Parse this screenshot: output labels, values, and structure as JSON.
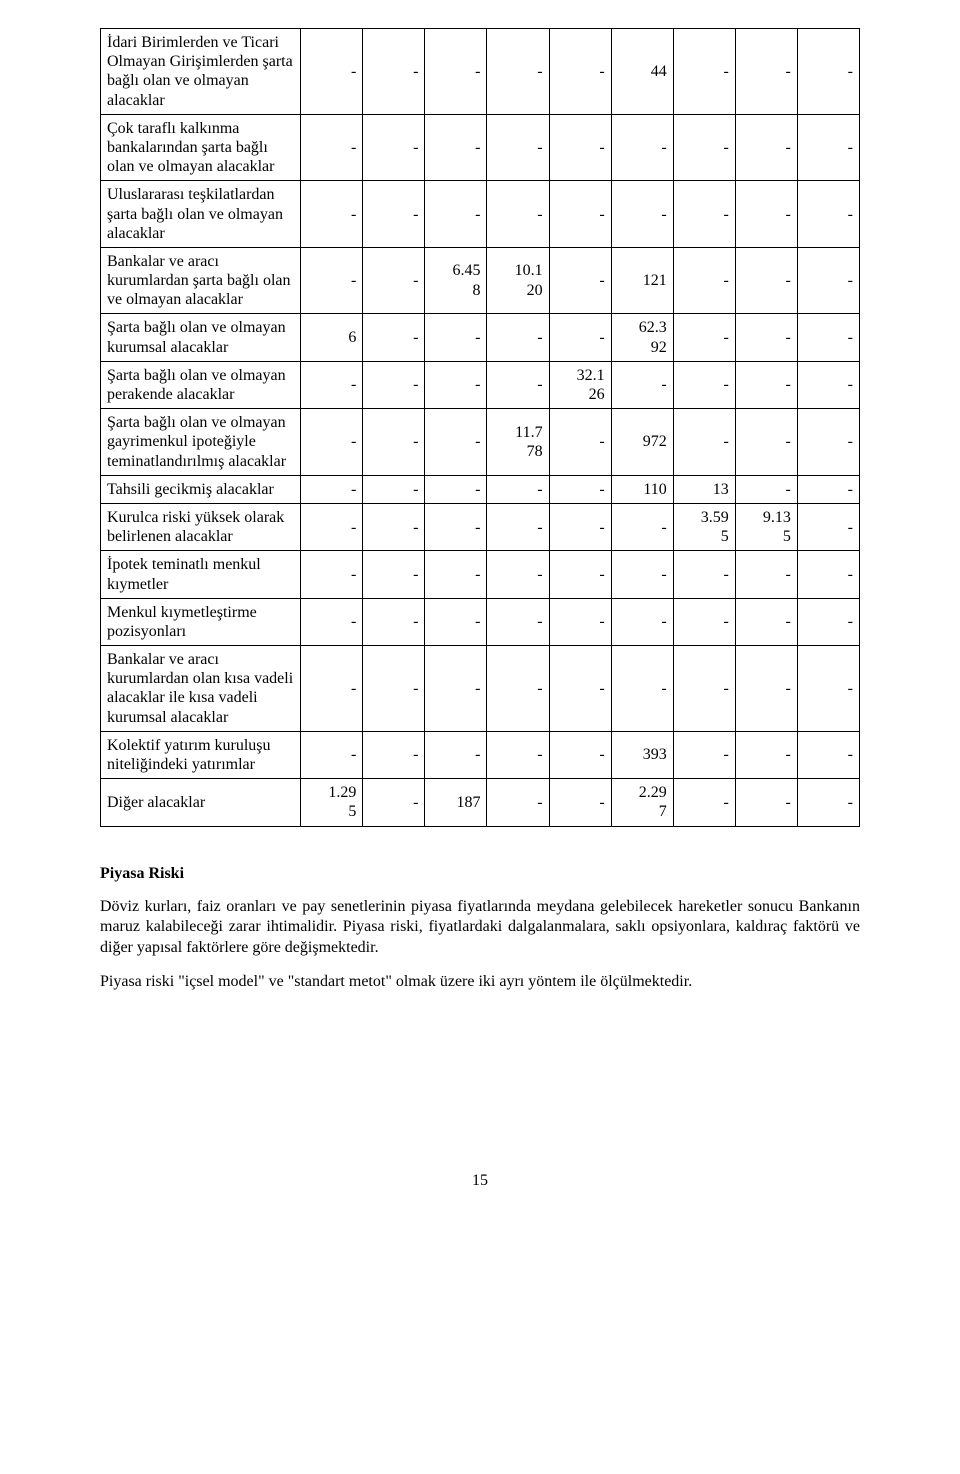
{
  "table": {
    "columns_count": 10,
    "row_labels": [
      "İdari Birimlerden ve Ticari Olmayan Girişimlerden şarta bağlı olan ve olmayan alacaklar",
      "Çok taraflı kalkınma bankalarından şarta bağlı olan ve olmayan alacaklar",
      "Uluslararası teşkilatlardan şarta bağlı olan ve olmayan alacaklar",
      "Bankalar ve aracı kurumlardan şarta bağlı olan ve olmayan alacaklar",
      "Şarta bağlı olan ve olmayan kurumsal alacaklar",
      "Şarta bağlı olan ve olmayan perakende alacaklar",
      "Şarta bağlı olan ve olmayan gayrimenkul ipoteğiyle teminatlandırılmış alacaklar",
      "Tahsili gecikmiş alacaklar",
      "Kurulca riski yüksek olarak belirlenen alacaklar",
      "İpotek teminatlı menkul kıymetler",
      "Menkul kıymetleştirme pozisyonları",
      "Bankalar ve aracı kurumlardan olan kısa vadeli alacaklar ile kısa vadeli kurumsal alacaklar",
      "Kolektif yatırım kuruluşu niteliğindeki yatırımlar",
      "Diğer alacaklar"
    ],
    "rows": [
      [
        "-",
        "-",
        "-",
        "-",
        "-",
        "44",
        "-",
        "-",
        "-"
      ],
      [
        "-",
        "-",
        "-",
        "-",
        "-",
        "-",
        "-",
        "-",
        "-"
      ],
      [
        "-",
        "-",
        "-",
        "-",
        "-",
        "-",
        "-",
        "-",
        "-"
      ],
      [
        "-",
        "-",
        "6.45\n8",
        "10.1\n20",
        "-",
        "121",
        "-",
        "-",
        "-"
      ],
      [
        "6",
        "-",
        "-",
        "-",
        "-",
        "62.3\n92",
        "-",
        "-",
        "-"
      ],
      [
        "-",
        "-",
        "-",
        "-",
        "32.1\n26",
        "-",
        "-",
        "-",
        "-"
      ],
      [
        "-",
        "-",
        "-",
        "11.7\n78",
        "-",
        "972",
        "-",
        "-",
        "-"
      ],
      [
        "-",
        "-",
        "-",
        "-",
        "-",
        "110",
        "13",
        "-",
        "-"
      ],
      [
        "-",
        "-",
        "-",
        "-",
        "-",
        "-",
        "3.59\n5",
        "9.13\n5",
        "-"
      ],
      [
        "-",
        "-",
        "-",
        "-",
        "-",
        "-",
        "-",
        "-",
        "-"
      ],
      [
        "-",
        "-",
        "-",
        "-",
        "-",
        "-",
        "-",
        "-",
        "-"
      ],
      [
        "-",
        "-",
        "-",
        "-",
        "-",
        "-",
        "-",
        "-",
        "-"
      ],
      [
        "-",
        "-",
        "-",
        "-",
        "-",
        "393",
        "-",
        "-",
        "-"
      ],
      [
        "1.29\n5",
        "-",
        "187",
        "-",
        "-",
        "2.29\n7",
        "-",
        "-",
        "-"
      ]
    ]
  },
  "section": {
    "heading": "Piyasa Riski",
    "para1": "Döviz kurları, faiz oranları ve pay senetlerinin piyasa fiyatlarında meydana gelebilecek hareketler sonucu Bankanın maruz kalabileceği zarar ihtimalidir. Piyasa riski, fiyatlardaki dalgalanmalara, saklı opsiyonlara, kaldıraç faktörü ve diğer yapısal faktörlere göre değişmektedir.",
    "para2": "Piyasa riski \"içsel model\" ve \"standart metot\" olmak üzere iki ayrı yöntem ile ölçülmektedir."
  },
  "page_number": "15"
}
